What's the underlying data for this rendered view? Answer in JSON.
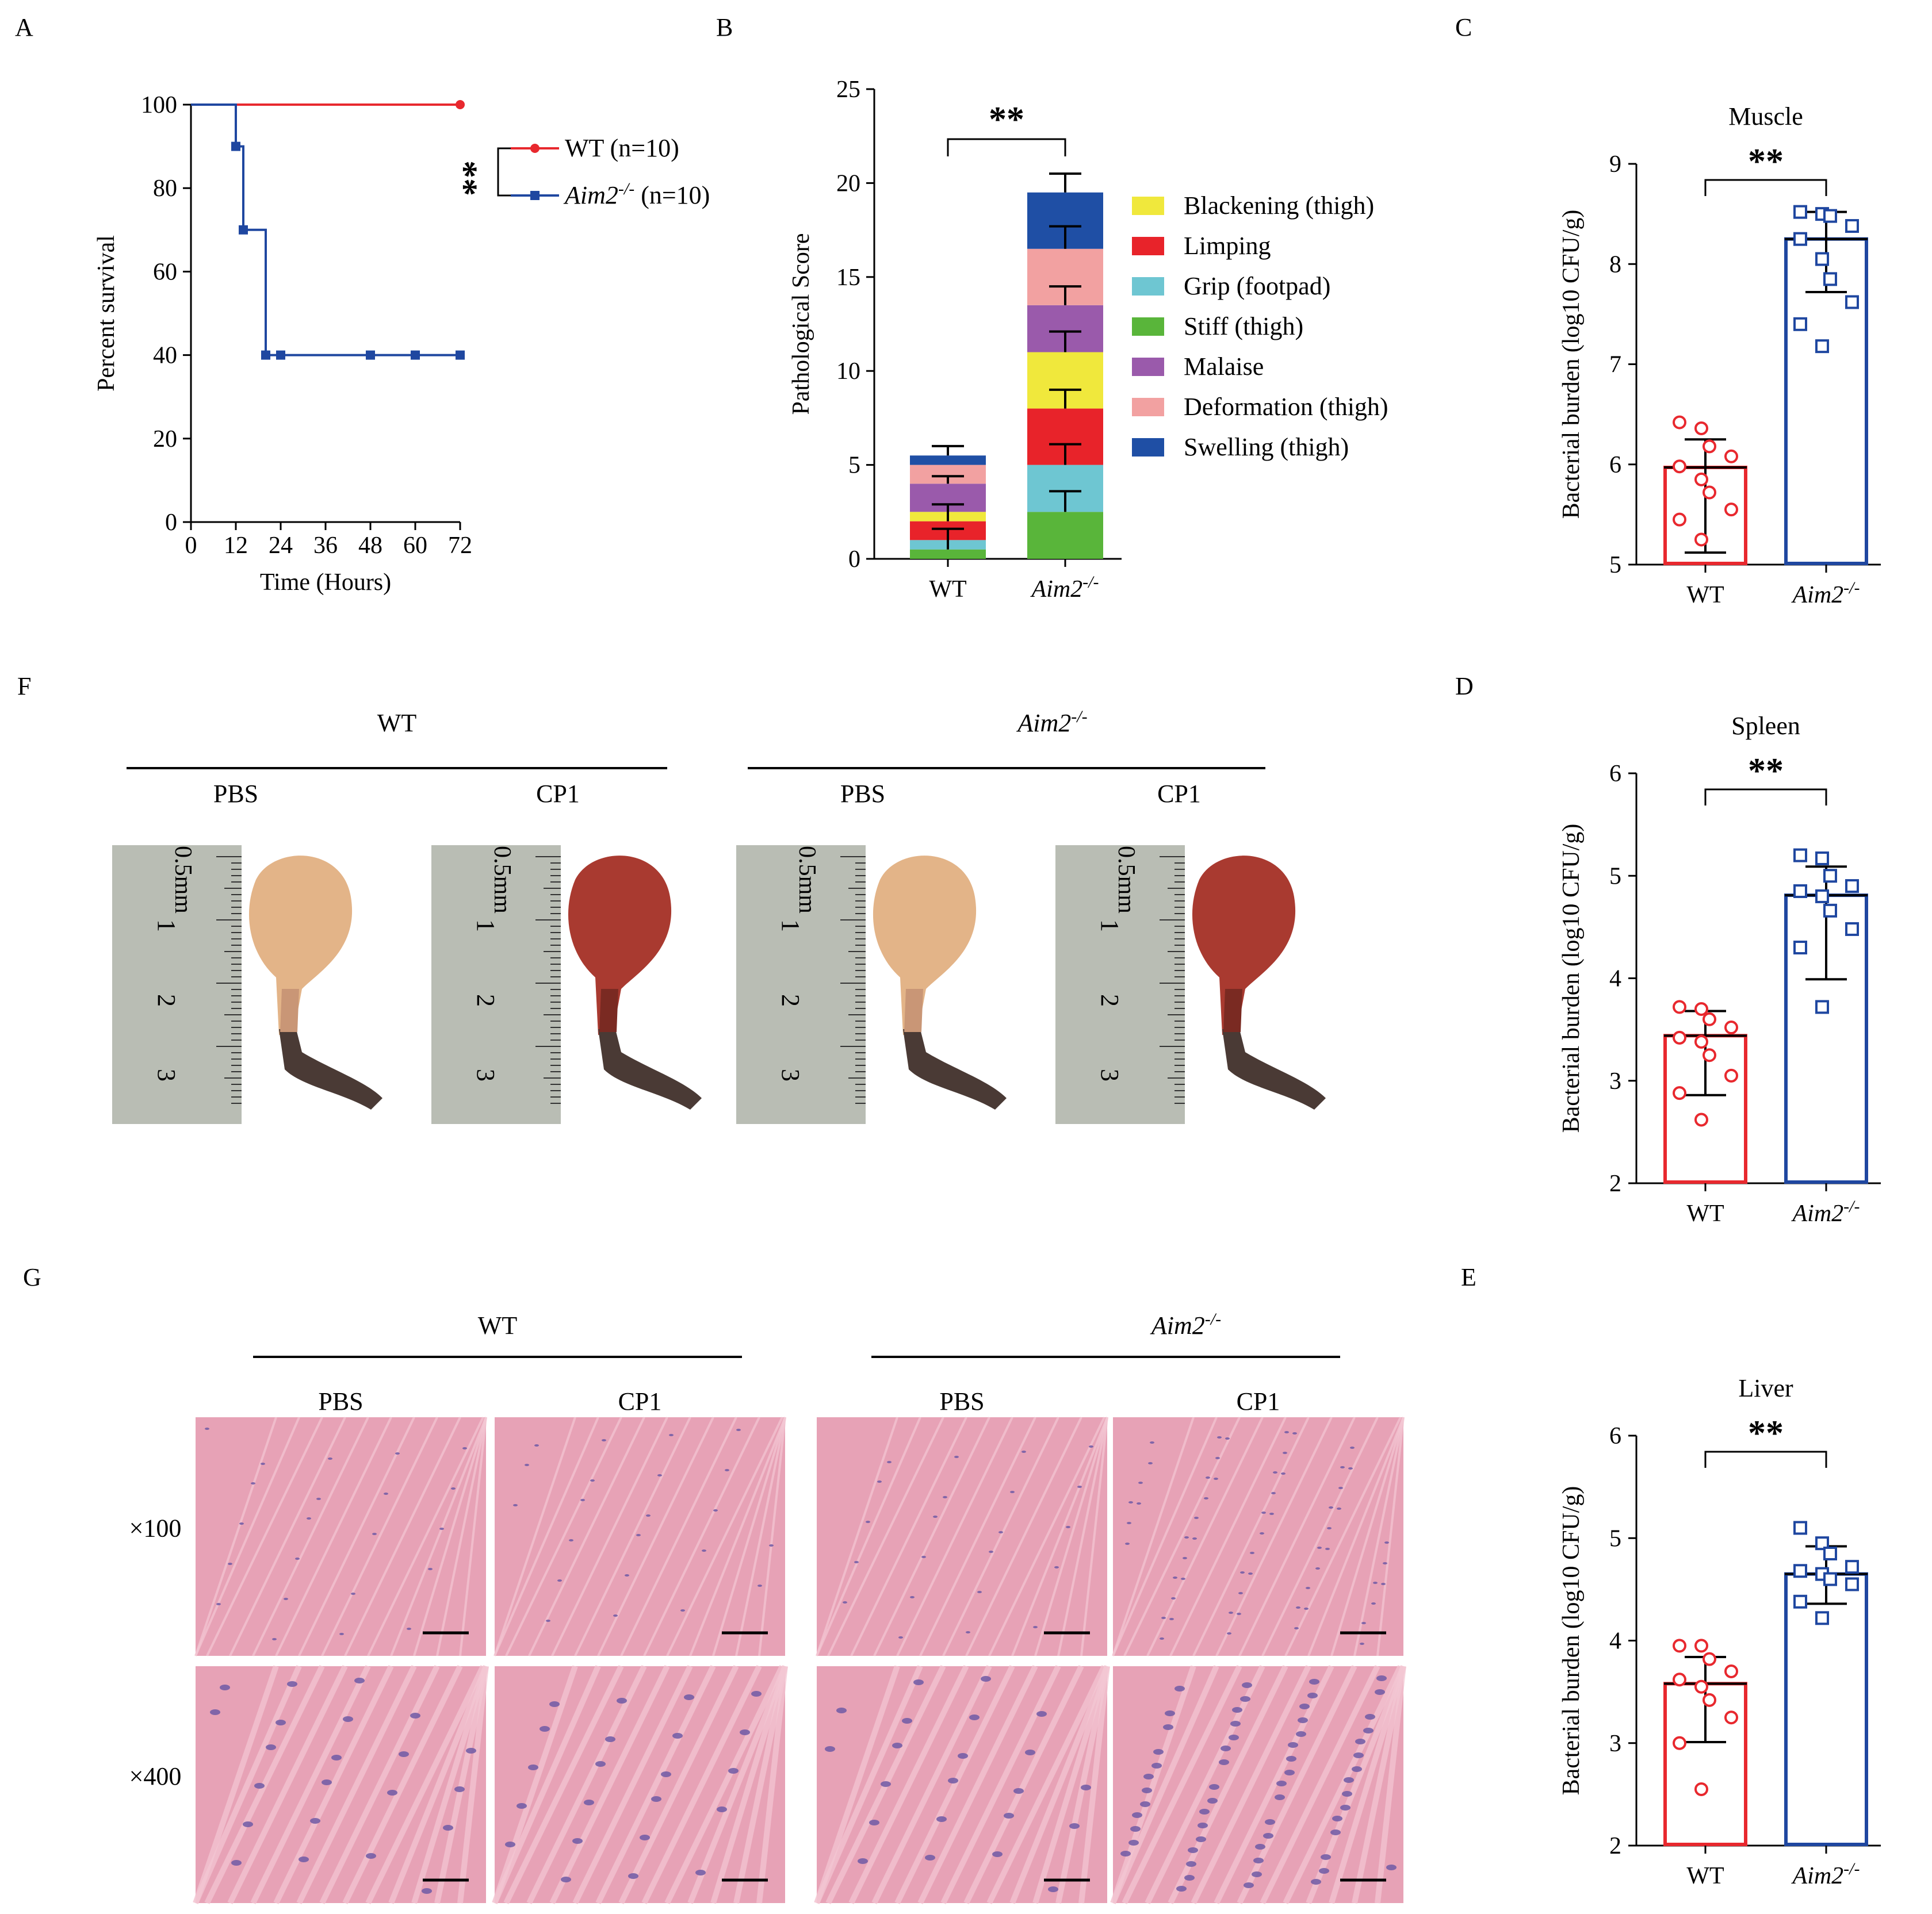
{
  "panels": {
    "A": "A",
    "B": "B",
    "C": "C",
    "D": "D",
    "E": "E",
    "F": "F",
    "G": "G"
  },
  "chart_data": [
    {
      "panel": "A",
      "type": "line",
      "ylabel": "Percent survival",
      "xlabel": "Time (Hours)",
      "xlim": [
        0,
        72
      ],
      "ylim": [
        0,
        100
      ],
      "xticks": [
        "0",
        "12",
        "24",
        "36",
        "48",
        "60",
        "72"
      ],
      "yticks": [
        "0",
        "20",
        "40",
        "60",
        "80",
        "100"
      ],
      "significance": "**",
      "series": [
        {
          "name": "WT (n=10)",
          "name_main": "WT",
          "name_n": "(n=10)",
          "color": "#e8282e",
          "marker": "circle",
          "steps": [
            [
              0,
              100
            ],
            [
              72,
              100
            ]
          ],
          "censored": [
            [
              72,
              100
            ]
          ]
        },
        {
          "name": "Aim2-/- (n=10)",
          "name_main": "Aim2",
          "name_sup": "-/-",
          "name_n": "(n=10)",
          "color": "#1f47a0",
          "marker": "square",
          "steps": [
            [
              0,
              100
            ],
            [
              12,
              100
            ],
            [
              12,
              90
            ],
            [
              14,
              90
            ],
            [
              14,
              70
            ],
            [
              20,
              70
            ],
            [
              20,
              40
            ],
            [
              72,
              40
            ]
          ],
          "censored": [
            [
              12,
              90
            ],
            [
              14,
              70
            ],
            [
              20,
              40
            ],
            [
              24,
              40
            ],
            [
              48,
              40
            ],
            [
              60,
              40
            ],
            [
              72,
              40
            ]
          ]
        }
      ]
    },
    {
      "panel": "B",
      "type": "bar",
      "stacked": true,
      "ylabel": "Pathological Score",
      "ylim": [
        0,
        25
      ],
      "yticks": [
        "0",
        "5",
        "10",
        "15",
        "20",
        "25"
      ],
      "categories": [
        "WT",
        "Aim2-/-"
      ],
      "category_labels": [
        {
          "main": "WT"
        },
        {
          "main": "Aim2",
          "sup": "-/-",
          "italic": true
        }
      ],
      "significance": "**",
      "series": [
        {
          "name": "Stiff (thigh)",
          "color": "#59b53a",
          "values": [
            0.5,
            2.5
          ]
        },
        {
          "name": "Grip (footpad)",
          "color": "#6ec6d2",
          "values": [
            0.5,
            2.5
          ]
        },
        {
          "name": "Limping",
          "color": "#e8232a",
          "values": [
            1.0,
            3.0
          ]
        },
        {
          "name": "Blackening (thigh)",
          "color": "#f0e83c",
          "values": [
            0.5,
            3.0
          ]
        },
        {
          "name": "Malaise",
          "color": "#9a5aab",
          "values": [
            1.5,
            2.5
          ]
        },
        {
          "name": "Deformation (thigh)",
          "color": "#f2a1a1",
          "values": [
            1.0,
            3.0
          ]
        },
        {
          "name": "Swelling (thigh)",
          "color": "#1f4fa5",
          "values": [
            0.5,
            3.0
          ]
        }
      ],
      "error_bars": [
        {
          "cat": 0,
          "ends": [
            1.6,
            2.9,
            4.4,
            6.0
          ]
        },
        {
          "cat": 1,
          "ends": [
            3.6,
            6.1,
            9.0,
            12.1,
            14.5,
            17.7,
            20.5
          ]
        }
      ],
      "legend_order": [
        "Blackening (thigh)",
        "Limping",
        "Grip (footpad)",
        "Stiff (thigh)",
        "Malaise",
        "Deformation (thigh)",
        "Swelling (thigh)"
      ]
    },
    {
      "panel": "C",
      "type": "bar",
      "title": "Muscle",
      "ylabel": "Bacterial burden (log10 CFU/g)",
      "ylim": [
        5,
        9
      ],
      "yticks": [
        "5",
        "6",
        "7",
        "8",
        "9"
      ],
      "categories": [
        "WT",
        "Aim2-/-"
      ],
      "category_labels": [
        {
          "main": "WT"
        },
        {
          "main": "Aim2",
          "sup": "-/-",
          "italic": true
        }
      ],
      "significance": "**",
      "values": [
        5.97,
        8.25
      ],
      "error": [
        [
          5.12,
          6.25
        ],
        [
          7.72,
          8.52
        ]
      ],
      "points": [
        [
          6.42,
          6.36,
          6.18,
          6.08,
          5.98,
          5.85,
          5.72,
          5.55,
          5.45,
          5.25
        ],
        [
          8.52,
          8.5,
          8.48,
          8.38,
          8.25,
          8.05,
          7.85,
          7.62,
          7.4,
          7.18
        ]
      ]
    },
    {
      "panel": "D",
      "type": "bar",
      "title": "Spleen",
      "ylabel": "Bacterial burden (log10 CFU/g)",
      "ylim": [
        2,
        6
      ],
      "yticks": [
        "2",
        "3",
        "4",
        "5",
        "6"
      ],
      "categories": [
        "WT",
        "Aim2-/-"
      ],
      "category_labels": [
        {
          "main": "WT"
        },
        {
          "main": "Aim2",
          "sup": "-/-",
          "italic": true
        }
      ],
      "significance": "**",
      "values": [
        3.44,
        4.81
      ],
      "error": [
        [
          2.86,
          3.68
        ],
        [
          3.99,
          5.09
        ]
      ],
      "points": [
        [
          3.72,
          3.7,
          3.6,
          3.52,
          3.42,
          3.38,
          3.25,
          3.05,
          2.88,
          2.62
        ],
        [
          5.2,
          5.17,
          5.0,
          4.9,
          4.85,
          4.8,
          4.66,
          4.48,
          4.3,
          3.72
        ]
      ]
    },
    {
      "panel": "E",
      "type": "bar",
      "title": "Liver",
      "ylabel": "Bacterial burden (log10 CFU/g)",
      "ylim": [
        2,
        6
      ],
      "yticks": [
        "2",
        "3",
        "4",
        "5",
        "6"
      ],
      "categories": [
        "WT",
        "Aim2-/-"
      ],
      "category_labels": [
        {
          "main": "WT"
        },
        {
          "main": "Aim2",
          "sup": "-/-",
          "italic": true
        }
      ],
      "significance": "**",
      "values": [
        3.58,
        4.65
      ],
      "error": [
        [
          3.01,
          3.84
        ],
        [
          4.36,
          4.92
        ]
      ],
      "points": [
        [
          3.95,
          3.95,
          3.82,
          3.7,
          3.62,
          3.55,
          3.42,
          3.25,
          3.0,
          2.55
        ],
        [
          5.1,
          4.95,
          4.85,
          4.72,
          4.68,
          4.65,
          4.6,
          4.55,
          4.38,
          4.22
        ]
      ]
    }
  ],
  "panel_F": {
    "groups": [
      {
        "main": "WT"
      },
      {
        "main": "Aim2",
        "sup": "-/-",
        "italic": true
      }
    ],
    "conditions": [
      "PBS",
      "CP1",
      "PBS",
      "CP1"
    ],
    "ruler_unit": "0.5mm",
    "ruler_numbers": [
      "1",
      "2",
      "3"
    ]
  },
  "panel_G": {
    "groups": [
      {
        "main": "WT"
      },
      {
        "main": "Aim2",
        "sup": "-/-",
        "italic": true
      }
    ],
    "conditions": [
      "PBS",
      "CP1",
      "PBS",
      "CP1"
    ],
    "magnifications": [
      "×100",
      "×400"
    ]
  },
  "colors": {
    "wt_red": "#e8282e",
    "ko_blue": "#1f47a0",
    "tissue_pink": "#e7a2b6",
    "nuclei_purple": "#6e5aa6",
    "ruler_metal": "#b9bdb4"
  }
}
